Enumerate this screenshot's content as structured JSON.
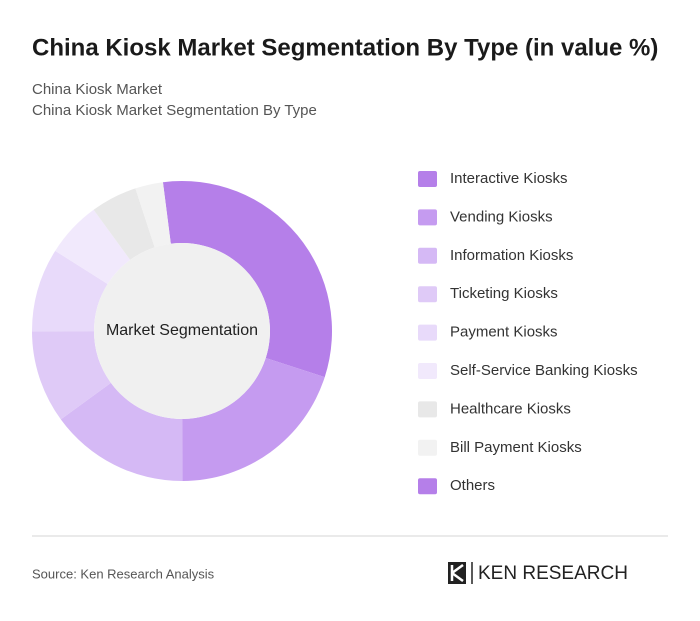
{
  "chart_data": {
    "type": "donut",
    "title": "China Kiosk Market Segmentation By Type (in value %)",
    "subtitle": [
      "China Kiosk Market",
      "China Kiosk Market Segmentation By Type"
    ],
    "center_label": "Market Segmentation",
    "categories": [
      "Interactive Kiosks",
      "Vending Kiosks",
      "Information Kiosks",
      "Ticketing Kiosks",
      "Payment Kiosks",
      "Self-Service Banking Kiosks",
      "Healthcare Kiosks",
      "Bill Payment Kiosks",
      "Others"
    ],
    "values": [
      32,
      20,
      15,
      10,
      9,
      6,
      5,
      3,
      0
    ],
    "colors": [
      "#b57fe9",
      "#c59bf0",
      "#d5b9f5",
      "#dfcaf7",
      "#e8dafa",
      "#f1e9fc",
      "#e8e8e8",
      "#f2f2f2",
      "#b57fe9"
    ],
    "source": "Source: Ken Research Analysis",
    "logo": "KEN RESEARCH"
  }
}
